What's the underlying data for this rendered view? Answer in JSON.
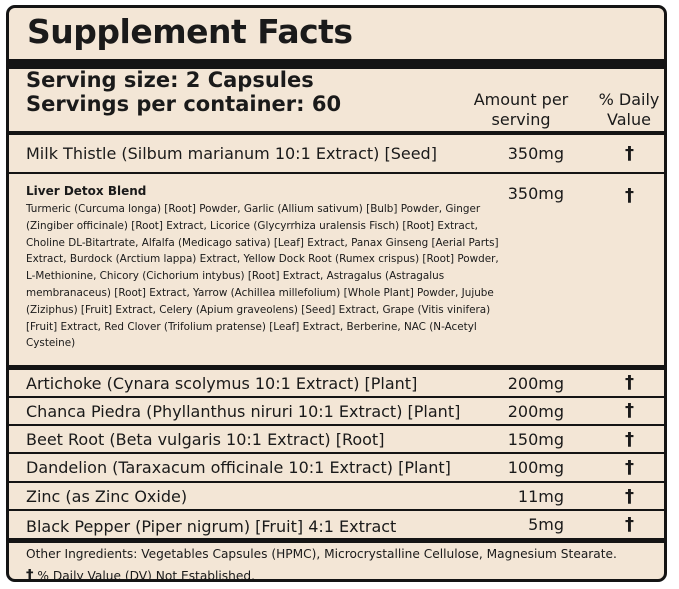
{
  "title": "Supplement Facts",
  "serving_size": "Serving size: 2 Capsules",
  "servings_per_container": "Servings per container: 60",
  "col_amount": "Amount per serving",
  "col_amount_line1": "Amount per",
  "col_amount_line2": "serving",
  "col_dv_line1": "% Daily",
  "col_dv_line2": "Value",
  "rows": [
    {
      "name": "Milk Thistle (Silbum marianum 10:1 Extract) [Seed]",
      "amount": "350mg",
      "dv": "†"
    },
    {
      "name": "Liver Detox Blend",
      "amount": "350mg",
      "dv": "†",
      "ingredients": "Turmeric (Curcuma longa) [Root] Powder, Garlic (Allium sativum) [Bulb] Powder, Ginger (Zingiber officinale) [Root] Extract, Licorice (Glycyrrhiza uralensis Fisch) [Root] Extract, Choline DL-Bitartrate, Alfalfa (Medicago sativa) [Leaf] Extract, Panax Ginseng [Aerial Parts] Extract, Burdock (Arctium lappa) Extract, Yellow Dock Root (Rumex crispus) [Root] Powder, L-Methionine, Chicory (Cichorium intybus) [Root] Extract, Astragalus (Astragalus membranaceus) [Root] Extract, Yarrow (Achillea millefolium) [Whole Plant] Powder, Jujube (Ziziphus) [Fruit] Extract, Celery (Apium graveolens) [Seed] Extract, Grape (Vitis vinifera) [Fruit] Extract, Red Clover (Trifolium pratense) [Leaf] Extract, Berberine, NAC (N-Acetyl Cysteine)"
    },
    {
      "name": "Artichoke (Cynara scolymus 10:1 Extract) [Plant]",
      "amount": "200mg",
      "dv": "†"
    },
    {
      "name": "Chanca Piedra (Phyllanthus niruri 10:1 Extract) [Plant]",
      "amount": "200mg",
      "dv": "†"
    },
    {
      "name": "Beet Root (Beta vulgaris 10:1 Extract) [Root]",
      "amount": "150mg",
      "dv": "†"
    },
    {
      "name": "Dandelion (Taraxacum officinale 10:1 Extract) [Plant]",
      "amount": "100mg",
      "dv": "†"
    },
    {
      "name": "Zinc (as Zinc Oxide)",
      "amount": "11mg",
      "dv": "†"
    },
    {
      "name": "Black Pepper (Piper nigrum) [Fruit] 4:1 Extract",
      "amount": "5mg",
      "dv": "†"
    }
  ],
  "other_ingredients": "Other Ingredients: Vegetables Capsules (HPMC), Microcrystalline Cellulose, Magnesium Stearate.",
  "footnote_symbol": "†",
  "footnote": "% Daily Value (DV) Not Established.",
  "colors": {
    "background": "#f3e6d6",
    "border": "#141414",
    "text": "#1a1a1a"
  }
}
